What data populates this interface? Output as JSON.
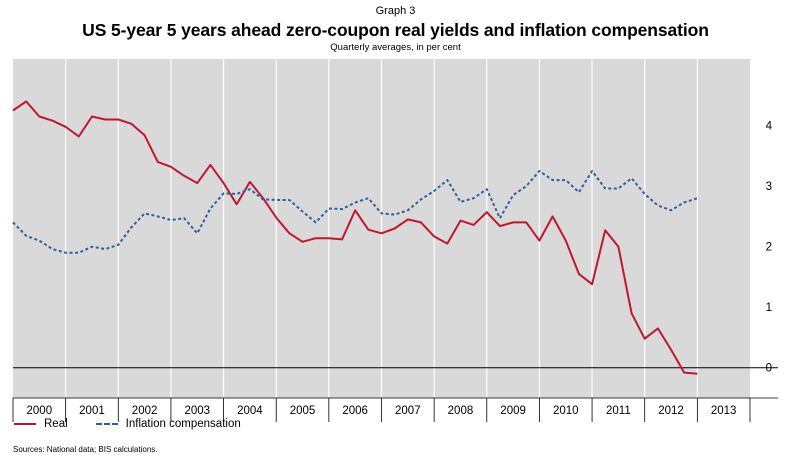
{
  "header": {
    "graph_label": "Graph 3",
    "title": "US 5-year 5 years ahead zero-coupon real yields and inflation compensation",
    "subtitle": "Quarterly averages, in per cent"
  },
  "footer": {
    "source": "Sources: National data; BIS calculations."
  },
  "colors": {
    "real": "#c0172e",
    "inflation": "#2f5f9e",
    "plot_bg": "#d9d9d9"
  },
  "chart_data": {
    "type": "line",
    "ylim": [
      -0.5,
      5.1
    ],
    "yticks": [
      0,
      1,
      2,
      3,
      4
    ],
    "ytick_labels": [
      "0",
      "1",
      "2",
      "3",
      "4"
    ],
    "y_axis_side": "right",
    "zero_line": true,
    "x_start": 2000.0,
    "x_end": 2014.0,
    "year_labels": [
      "2000",
      "2001",
      "2002",
      "2003",
      "2004",
      "2005",
      "2006",
      "2007",
      "2008",
      "2009",
      "2010",
      "2011",
      "2012",
      "2013"
    ],
    "series": [
      {
        "name": "Real",
        "style": "solid",
        "values": [
          4.25,
          4.4,
          4.15,
          4.08,
          3.98,
          3.82,
          4.15,
          4.1,
          4.1,
          4.03,
          3.84,
          3.4,
          3.32,
          3.17,
          3.05,
          3.35,
          3.05,
          2.7,
          3.07,
          2.8,
          2.48,
          2.22,
          2.08,
          2.14,
          2.14,
          2.12,
          2.6,
          2.28,
          2.22,
          2.3,
          2.45,
          2.4,
          2.17,
          2.05,
          2.43,
          2.36,
          2.57,
          2.34,
          2.4,
          2.4,
          2.1,
          2.5,
          2.1,
          1.55,
          1.38,
          2.27,
          2.0,
          0.9,
          0.48,
          0.65,
          0.3,
          -0.08,
          -0.1
        ]
      },
      {
        "name": "Inflation compensation",
        "style": "dashed",
        "values": [
          2.4,
          2.18,
          2.1,
          1.96,
          1.9,
          1.9,
          2.0,
          1.96,
          2.03,
          2.32,
          2.55,
          2.5,
          2.44,
          2.47,
          2.22,
          2.63,
          2.88,
          2.87,
          2.95,
          2.78,
          2.77,
          2.77,
          2.58,
          2.4,
          2.63,
          2.62,
          2.73,
          2.8,
          2.55,
          2.53,
          2.6,
          2.78,
          2.92,
          3.1,
          2.74,
          2.8,
          2.95,
          2.47,
          2.85,
          3.0,
          3.25,
          3.1,
          3.1,
          2.9,
          3.25,
          2.96,
          2.96,
          3.13,
          2.87,
          2.68,
          2.6,
          2.73,
          2.8
        ]
      }
    ]
  }
}
